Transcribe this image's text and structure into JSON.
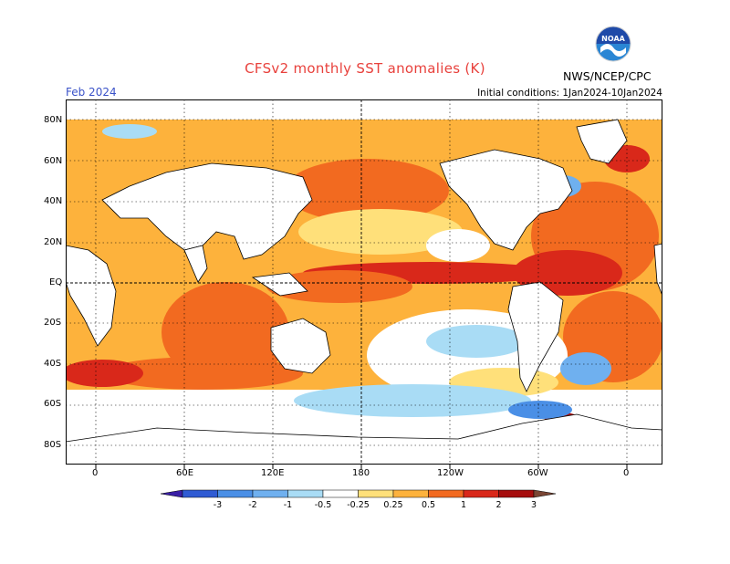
{
  "header": {
    "title": "CFSv2 monthly SST anomalies (K)",
    "month": "Feb 2024",
    "initial_conditions": "Initial conditions: 1Jan2024-10Jan2024",
    "agency": "NWS/NCEP/CPC",
    "logo_text": "NOAA"
  },
  "map": {
    "lat_labels": [
      "80N",
      "60N",
      "40N",
      "20N",
      "EQ",
      "20S",
      "40S",
      "60S",
      "80S"
    ],
    "lon_labels": [
      "0",
      "60E",
      "120E",
      "180",
      "120W",
      "60W",
      "0"
    ]
  },
  "colorbar": {
    "labels": [
      "-3",
      "-2",
      "-1",
      "-0.5",
      "-0.25",
      "0.25",
      "0.5",
      "1",
      "2",
      "3"
    ],
    "colors": [
      "#3a1fa6",
      "#2f5bd3",
      "#4a8fe6",
      "#6fb0ef",
      "#a9dcf5",
      "#ffffff",
      "#ffe07a",
      "#fdb23c",
      "#f26a20",
      "#d9281a",
      "#a60d0d",
      "#7a4634"
    ]
  }
}
